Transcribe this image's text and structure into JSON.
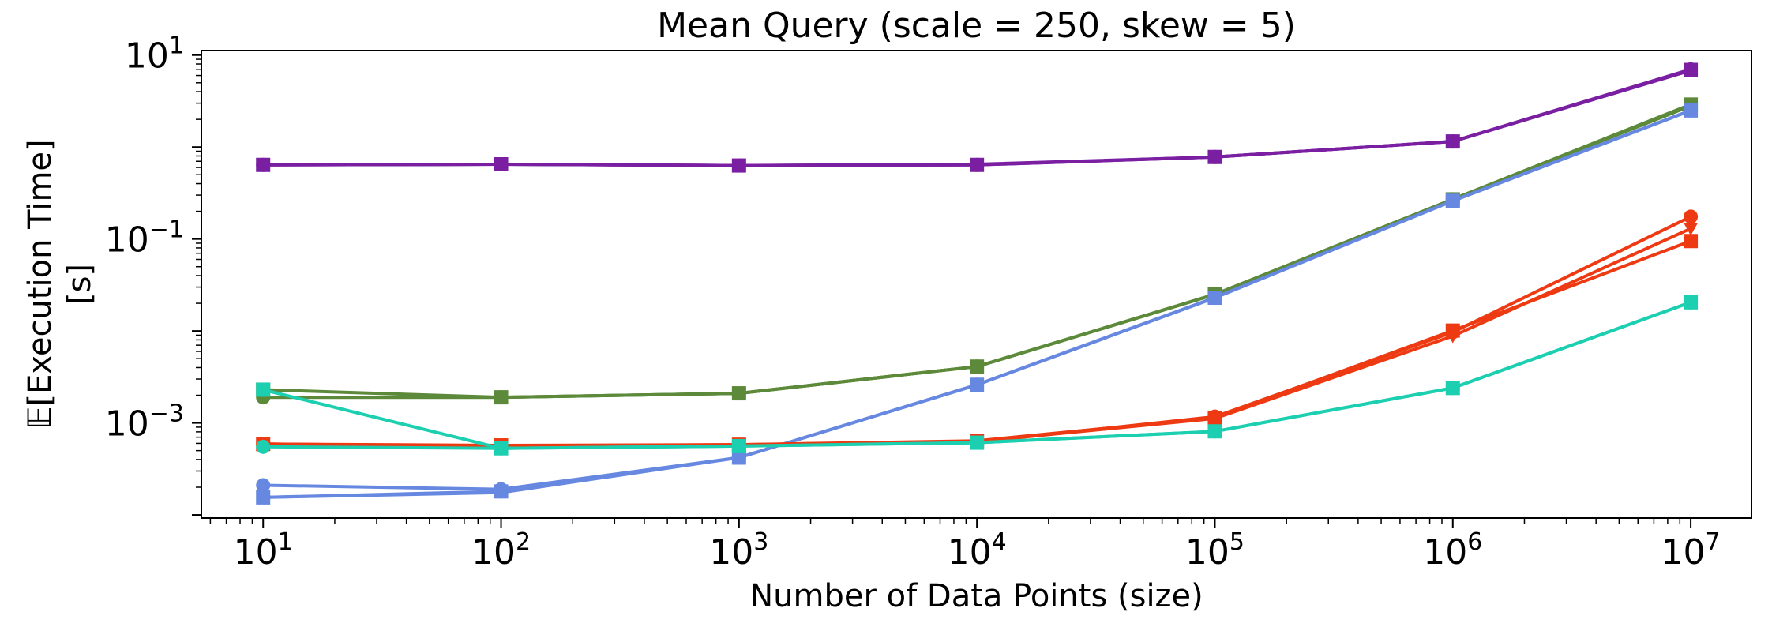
{
  "chart_data": {
    "type": "line",
    "title": "Mean Query (scale = 250, skew = 5)",
    "xlabel": "Number of Data Points (size)",
    "ylabel_line1": "𝔼[Execution Time]",
    "ylabel_line2": "[s]",
    "xscale": "log",
    "yscale": "log",
    "xlim": [
      5.5,
      18000000
    ],
    "ylim": [
      9.25e-05,
      11.2
    ],
    "x": [
      10,
      100,
      1000,
      10000,
      100000,
      1000000,
      10000000
    ],
    "x_ticks": [
      {
        "base": "10",
        "exp": "1"
      },
      {
        "base": "10",
        "exp": "2"
      },
      {
        "base": "10",
        "exp": "3"
      },
      {
        "base": "10",
        "exp": "4"
      },
      {
        "base": "10",
        "exp": "5"
      },
      {
        "base": "10",
        "exp": "6"
      },
      {
        "base": "10",
        "exp": "7"
      }
    ],
    "y_ticks": [
      {
        "value": 10,
        "base": "10",
        "exp": "1"
      },
      {
        "value": 0.1,
        "base": "10",
        "exp": "−1"
      },
      {
        "value": 0.001,
        "base": "10",
        "exp": "−3"
      }
    ],
    "grid": false,
    "series": [
      {
        "color": "#7a1fa2",
        "marker": "circle",
        "values": [
          0.64,
          0.65,
          0.63,
          0.64,
          0.78,
          1.15,
          7.0
        ]
      },
      {
        "color": "#7a1fa2",
        "marker": "down-triangle",
        "values": [
          0.64,
          0.65,
          0.63,
          0.65,
          0.78,
          1.15,
          6.8
        ]
      },
      {
        "color": "#7a1fa2",
        "marker": "square",
        "values": [
          0.64,
          0.65,
          0.63,
          0.64,
          0.78,
          1.15,
          6.9
        ]
      },
      {
        "color": "#5c8a3a",
        "marker": "circle",
        "values": [
          0.0019,
          0.0019,
          0.0021,
          0.0041,
          0.025,
          0.27,
          2.9
        ]
      },
      {
        "color": "#5c8a3a",
        "marker": "down-triangle",
        "values": [
          0.0019,
          0.0019,
          0.0021,
          0.0041,
          0.025,
          0.27,
          2.8
        ]
      },
      {
        "color": "#5c8a3a",
        "marker": "square",
        "values": [
          0.0023,
          0.0019,
          0.0021,
          0.0041,
          0.025,
          0.27,
          2.9
        ]
      },
      {
        "color": "#6688e0",
        "marker": "circle",
        "values": [
          0.00021,
          0.00019,
          0.00042,
          0.0026,
          0.023,
          0.26,
          2.5
        ]
      },
      {
        "color": "#6688e0",
        "marker": "down-triangle",
        "values": [
          0.000155,
          0.000175,
          0.00042,
          0.0026,
          0.023,
          0.26,
          2.5
        ]
      },
      {
        "color": "#6688e0",
        "marker": "square",
        "values": [
          0.000155,
          0.00018,
          0.00042,
          0.0026,
          0.023,
          0.26,
          2.5
        ]
      },
      {
        "color": "#ee3a12",
        "marker": "circle",
        "values": [
          0.00059,
          0.00056,
          0.00057,
          0.00062,
          0.00117,
          0.0097,
          0.175
        ]
      },
      {
        "color": "#ee3a12",
        "marker": "down-triangle",
        "values": [
          0.00059,
          0.00056,
          0.00058,
          0.00063,
          0.00112,
          0.0088,
          0.13
        ]
      },
      {
        "color": "#ee3a12",
        "marker": "square",
        "values": [
          0.00059,
          0.00057,
          0.00058,
          0.00064,
          0.00114,
          0.0101,
          0.095
        ]
      },
      {
        "color": "#1ccfb0",
        "marker": "square",
        "values": [
          0.0023,
          0.00053,
          0.00056,
          0.00061,
          0.00081,
          0.0024,
          0.0205
        ]
      },
      {
        "color": "#1ccfb0",
        "marker": "circle",
        "values": [
          0.00055,
          0.00053,
          0.00056,
          0.00061,
          0.00081,
          0.0024,
          0.0205
        ]
      }
    ]
  }
}
